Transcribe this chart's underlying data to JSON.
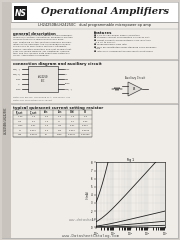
{
  "bg_color": "#d4cfc8",
  "page_bg": "#d4cfc8",
  "inner_bg": "#f0ede8",
  "header_bg": "#ffffff",
  "title": "Operational Amplifiers",
  "part_number": "LH24250B/LH24250C   dual programmable micropower op amp",
  "section1_title": "general description",
  "section1_text": [
    "The LH24250B/LH24250C series of dual program-",
    "mable micropower operational amplifiers are two",
    "LM4250 types in a single dual-in-line pack-",
    "age. Featuring on-the-spot performance manipu-",
    "lation of the amplifier, the LH24250B/LH24250C",
    "allows one to offer these features: flexibility,",
    "simple, versatile operation and cost savings that",
    "over any single devices. For additional informa-",
    "tion, see the LM4250 data sheet and National's",
    "Linear Applications Handbook."
  ],
  "section2_title": "features",
  "section2_text": [
    "■ 1.5V to 18V power supply operation",
    "■ Standby current consumption as low as 6μA",
    "■ Offset current compensatable from less than",
    "  0.5 nA to 500 nA",
    "■ Programmable slew rate",
    "■ May be substituted using standard quad-amplifier",
    "  PCB",
    "■ Internally compensated and short circuit proof"
  ],
  "conn_title": "connection diagram and auxiliary circuit",
  "typical_title": "typical quiescent current setting resistor",
  "sidebar_text": "LH24250B/LH24250C",
  "footer_text": "www.DatasheetCatalog.com",
  "watermark": "www.datasheetcatalog.com",
  "logo_text": "NS",
  "logo_bg": "#1a1a1a",
  "text_dark": "#222222",
  "text_mid": "#444444",
  "text_light": "#666666",
  "border_color": "#aaaaaa",
  "divider_color": "#999999",
  "sidebar_bg": "#c8c4bd",
  "table_headers": [
    "R_set",
    "I_set",
    "Vos",
    "Ios",
    "GBW",
    "SR"
  ],
  "table_rows": [
    [
      "1.0k",
      "1.0",
      "0.5",
      "2.0",
      "1.0",
      "0.5"
    ],
    [
      "10k",
      "0.1",
      "1.0",
      "10",
      "0.1",
      "0.05"
    ],
    [
      "100k",
      "0.01",
      "2.0",
      "100",
      "0.01",
      "0.005"
    ],
    [
      "1M",
      "0.001",
      "5.0",
      "500",
      "0.001",
      "0.0005"
    ],
    [
      "10M",
      "0.0001",
      "15",
      "5000",
      "0.0001",
      "0.00005"
    ]
  ]
}
